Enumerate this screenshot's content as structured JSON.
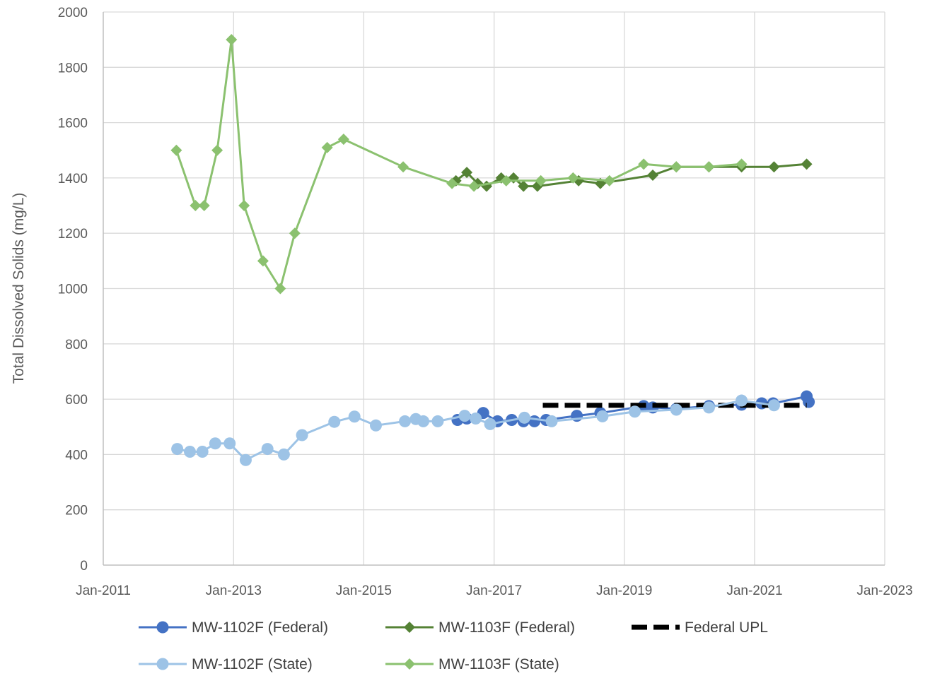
{
  "chart_data": {
    "type": "line",
    "title": "",
    "xlabel": "",
    "ylabel": "Total Dissolved Solids  (mg/L)",
    "xlim": [
      "2011-01",
      "2023-01"
    ],
    "ylim": [
      0,
      2000
    ],
    "x_tick_labels": [
      "Jan-2011",
      "Jan-2013",
      "Jan-2015",
      "Jan-2017",
      "Jan-2019",
      "Jan-2021",
      "Jan-2023"
    ],
    "y_tick_labels": [
      "0",
      "200",
      "400",
      "600",
      "800",
      "1000",
      "1200",
      "1400",
      "1600",
      "1800",
      "2000"
    ],
    "grid": true,
    "legend_placement": "bottom",
    "series": [
      {
        "name": "MW-1102F (Federal)",
        "color": "#4472C4",
        "marker": "circle",
        "dash": false,
        "points": [
          {
            "x": "2016-06-10",
            "y": 525
          },
          {
            "x": "2016-08-01",
            "y": 530
          },
          {
            "x": "2016-11-01",
            "y": 550
          },
          {
            "x": "2017-01-20",
            "y": 520
          },
          {
            "x": "2017-04-10",
            "y": 525
          },
          {
            "x": "2017-06-15",
            "y": 520
          },
          {
            "x": "2017-08-15",
            "y": 520
          },
          {
            "x": "2017-10-20",
            "y": 525
          },
          {
            "x": "2018-04-10",
            "y": 540
          },
          {
            "x": "2018-08-20",
            "y": 550
          },
          {
            "x": "2019-04-20",
            "y": 575
          },
          {
            "x": "2019-06-10",
            "y": 570
          },
          {
            "x": "2019-10-20",
            "y": 565
          },
          {
            "x": "2020-04-20",
            "y": 575
          },
          {
            "x": "2020-10-20",
            "y": 580
          },
          {
            "x": "2021-02-10",
            "y": 585
          },
          {
            "x": "2021-04-15",
            "y": 585
          },
          {
            "x": "2021-10-20",
            "y": 610
          },
          {
            "x": "2021-11-01",
            "y": 590
          }
        ]
      },
      {
        "name": "MW-1103F (Federal)",
        "color": "#548235",
        "marker": "diamond",
        "dash": false,
        "points": [
          {
            "x": "2016-06-01",
            "y": 1390
          },
          {
            "x": "2016-08-01",
            "y": 1420
          },
          {
            "x": "2016-10-01",
            "y": 1380
          },
          {
            "x": "2016-11-20",
            "y": 1370
          },
          {
            "x": "2017-02-10",
            "y": 1400
          },
          {
            "x": "2017-04-20",
            "y": 1400
          },
          {
            "x": "2017-06-15",
            "y": 1370
          },
          {
            "x": "2017-09-01",
            "y": 1370
          },
          {
            "x": "2018-04-20",
            "y": 1390
          },
          {
            "x": "2018-08-20",
            "y": 1380
          },
          {
            "x": "2019-06-10",
            "y": 1410
          },
          {
            "x": "2019-10-20",
            "y": 1440
          },
          {
            "x": "2020-04-20",
            "y": 1440
          },
          {
            "x": "2020-10-20",
            "y": 1440
          },
          {
            "x": "2021-04-20",
            "y": 1440
          },
          {
            "x": "2021-10-20",
            "y": 1450
          }
        ]
      },
      {
        "name": "Federal UPL",
        "color": "#000000",
        "marker": "none",
        "dash": true,
        "points": [
          {
            "x": "2017-10-01",
            "y": 578
          },
          {
            "x": "2021-10-20",
            "y": 578
          }
        ]
      },
      {
        "name": "MW-1102F (State)",
        "color": "#9DC3E6",
        "marker": "circle",
        "dash": false,
        "points": [
          {
            "x": "2012-02-20",
            "y": 420
          },
          {
            "x": "2012-05-01",
            "y": 410
          },
          {
            "x": "2012-07-10",
            "y": 410
          },
          {
            "x": "2012-09-20",
            "y": 440
          },
          {
            "x": "2012-12-10",
            "y": 440
          },
          {
            "x": "2013-03-10",
            "y": 380
          },
          {
            "x": "2013-07-10",
            "y": 420
          },
          {
            "x": "2013-10-10",
            "y": 400
          },
          {
            "x": "2014-01-20",
            "y": 470
          },
          {
            "x": "2014-07-20",
            "y": 518
          },
          {
            "x": "2014-11-10",
            "y": 537
          },
          {
            "x": "2015-03-10",
            "y": 505
          },
          {
            "x": "2015-08-20",
            "y": 520
          },
          {
            "x": "2015-10-20",
            "y": 528
          },
          {
            "x": "2015-12-01",
            "y": 520
          },
          {
            "x": "2016-02-20",
            "y": 520
          },
          {
            "x": "2016-07-20",
            "y": 540
          },
          {
            "x": "2016-09-20",
            "y": 530
          },
          {
            "x": "2016-12-10",
            "y": 510
          },
          {
            "x": "2017-06-20",
            "y": 533
          },
          {
            "x": "2017-11-20",
            "y": 520
          },
          {
            "x": "2018-09-01",
            "y": 538
          },
          {
            "x": "2019-03-01",
            "y": 555
          },
          {
            "x": "2019-10-20",
            "y": 562
          },
          {
            "x": "2020-04-20",
            "y": 570
          },
          {
            "x": "2020-10-20",
            "y": 595
          },
          {
            "x": "2021-04-20",
            "y": 578
          }
        ]
      },
      {
        "name": "MW-1103F (State)",
        "color": "#8BC16F",
        "marker": "diamond",
        "dash": false,
        "points": [
          {
            "x": "2012-02-15",
            "y": 1500
          },
          {
            "x": "2012-06-01",
            "y": 1300
          },
          {
            "x": "2012-07-20",
            "y": 1300
          },
          {
            "x": "2012-10-01",
            "y": 1500
          },
          {
            "x": "2012-12-20",
            "y": 1900
          },
          {
            "x": "2013-03-01",
            "y": 1300
          },
          {
            "x": "2013-06-15",
            "y": 1100
          },
          {
            "x": "2013-09-20",
            "y": 1000
          },
          {
            "x": "2013-12-10",
            "y": 1200
          },
          {
            "x": "2014-06-10",
            "y": 1510
          },
          {
            "x": "2014-09-10",
            "y": 1540
          },
          {
            "x": "2015-08-10",
            "y": 1440
          },
          {
            "x": "2016-05-10",
            "y": 1380
          },
          {
            "x": "2016-09-10",
            "y": 1370
          },
          {
            "x": "2017-03-10",
            "y": 1390
          },
          {
            "x": "2017-09-20",
            "y": 1390
          },
          {
            "x": "2018-03-20",
            "y": 1400
          },
          {
            "x": "2018-10-10",
            "y": 1390
          },
          {
            "x": "2019-04-20",
            "y": 1450
          },
          {
            "x": "2019-10-20",
            "y": 1440
          },
          {
            "x": "2020-04-20",
            "y": 1440
          },
          {
            "x": "2020-10-20",
            "y": 1450
          }
        ]
      }
    ]
  }
}
